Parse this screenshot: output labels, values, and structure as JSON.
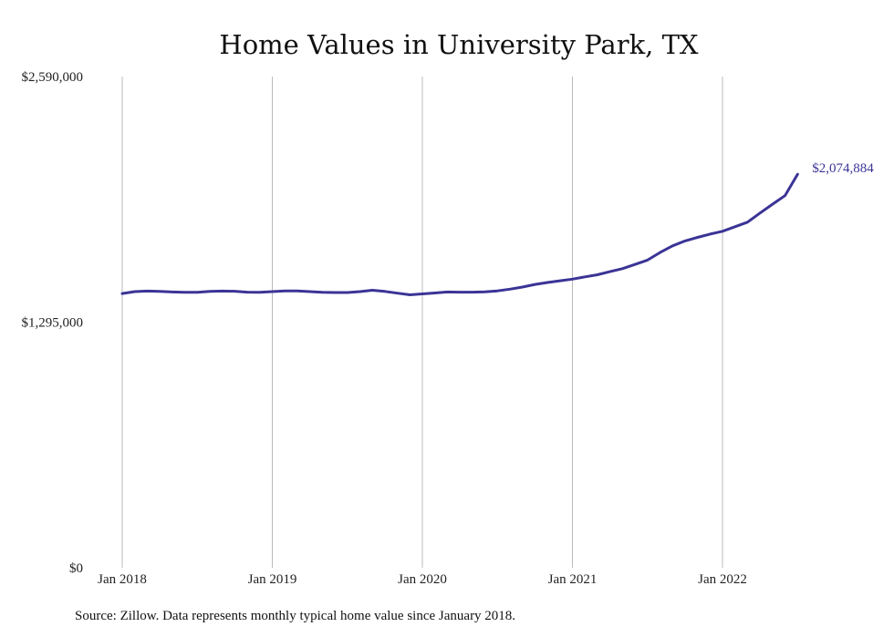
{
  "chart_data": {
    "type": "line",
    "title": "Home Values in University Park, TX",
    "xlabel": "",
    "ylabel": "",
    "ylim": [
      0,
      2590000
    ],
    "y_ticks": [
      "$0",
      "$1,295,000",
      "$2,590,000"
    ],
    "y_tick_values": [
      0,
      1295000,
      2590000
    ],
    "x_ticks": [
      "Jan 2018",
      "Jan 2019",
      "Jan 2020",
      "Jan 2021",
      "Jan 2022"
    ],
    "x_tick_dates": [
      "2018-01",
      "2019-01",
      "2020-01",
      "2021-01",
      "2022-01"
    ],
    "grid": "vertical",
    "line_color": "#3b3496",
    "grid_color": "#bbbbbb",
    "end_label": "$2,074,884",
    "series": [
      {
        "x": [
          "2018-01",
          "2018-02",
          "2018-03",
          "2018-04",
          "2018-05",
          "2018-06",
          "2018-07",
          "2018-08",
          "2018-09",
          "2018-10",
          "2018-11",
          "2018-12",
          "2019-01",
          "2019-02",
          "2019-03",
          "2019-04",
          "2019-05",
          "2019-06",
          "2019-07",
          "2019-08",
          "2019-09",
          "2019-10",
          "2019-11",
          "2019-12",
          "2020-01",
          "2020-02",
          "2020-03",
          "2020-04",
          "2020-05",
          "2020-06",
          "2020-07",
          "2020-08",
          "2020-09",
          "2020-10",
          "2020-11",
          "2020-12",
          "2021-01",
          "2021-02",
          "2021-03",
          "2021-04",
          "2021-05",
          "2021-06",
          "2021-07",
          "2021-08",
          "2021-09",
          "2021-10",
          "2021-11",
          "2021-12",
          "2022-01",
          "2022-02",
          "2022-03",
          "2022-04",
          "2022-05",
          "2022-06",
          "2022-07"
        ],
        "values": [
          1446000,
          1456000,
          1459000,
          1457000,
          1454000,
          1452000,
          1452000,
          1457000,
          1459000,
          1458000,
          1453000,
          1452000,
          1456000,
          1460000,
          1460000,
          1456000,
          1452000,
          1451000,
          1451000,
          1456000,
          1463000,
          1457000,
          1448000,
          1439000,
          1444000,
          1449000,
          1454000,
          1453000,
          1453000,
          1455000,
          1460000,
          1469000,
          1480000,
          1494000,
          1504000,
          1513000,
          1522000,
          1534000,
          1545000,
          1561000,
          1577000,
          1599000,
          1622000,
          1662000,
          1697000,
          1723000,
          1742000,
          1759000,
          1774000,
          1798000,
          1822000,
          1870000,
          1917000,
          1962000,
          2074884
        ]
      }
    ]
  },
  "source_note": "Source: Zillow. Data represents monthly typical home value since January 2018."
}
